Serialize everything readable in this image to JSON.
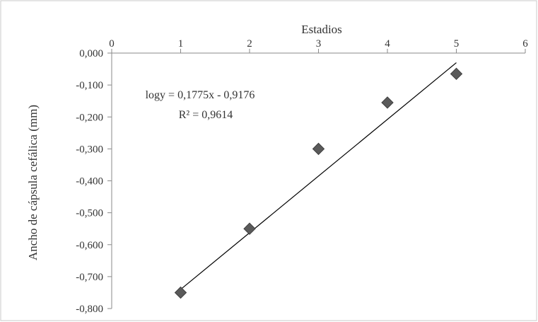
{
  "chart_data": {
    "type": "scatter",
    "title": "Estadios",
    "xlabel": "",
    "ylabel": "Ancho de cápsula cefálica (mm)",
    "xlim": [
      0,
      6
    ],
    "ylim": [
      -0.8,
      0.0
    ],
    "x_ticks": [
      "0",
      "1",
      "2",
      "3",
      "4",
      "5",
      "6"
    ],
    "y_ticks": [
      "0,000",
      "-0,100",
      "-0,200",
      "-0,300",
      "-0,400",
      "-0,500",
      "-0,600",
      "-0,700",
      "-0,800"
    ],
    "x_axis_position": "top",
    "grid": false,
    "series": [
      {
        "marker": "diamond",
        "color": "#5a5a5a",
        "points": [
          {
            "x": 1,
            "y": -0.75
          },
          {
            "x": 2,
            "y": -0.55
          },
          {
            "x": 3,
            "y": -0.3
          },
          {
            "x": 4,
            "y": -0.155
          },
          {
            "x": 5,
            "y": -0.065
          }
        ]
      }
    ],
    "trendline": {
      "type": "linear",
      "slope": 0.1775,
      "intercept": -0.9176,
      "x_range": [
        1,
        5
      ],
      "color": "#000000"
    },
    "equation_text": "logy = 0,1775x - 0,9176",
    "r2_text": "R² = 0,9614"
  }
}
